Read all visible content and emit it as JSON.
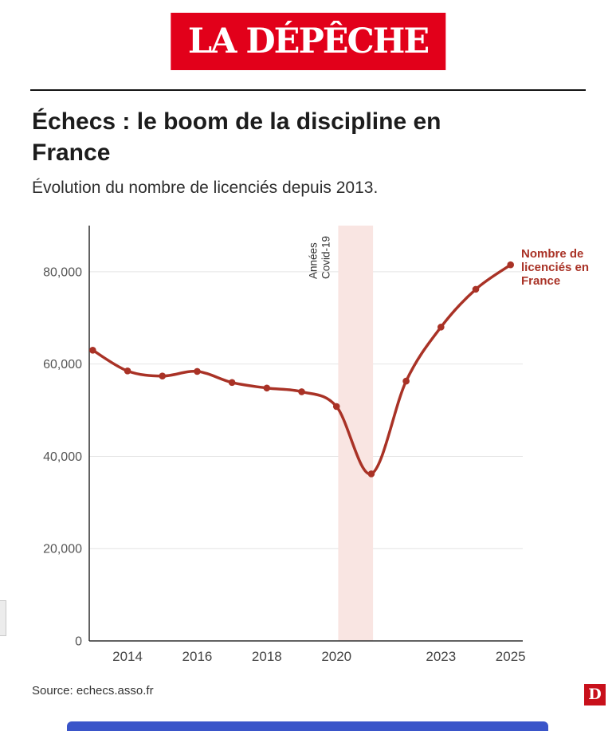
{
  "masthead": {
    "title": "LA DÉPÊCHE"
  },
  "header": {
    "title": "Échecs : le boom de la discipline en France",
    "subtitle": "Évolution du nombre de licenciés depuis 2013."
  },
  "chart_data": {
    "type": "line",
    "title": "Échecs : le boom de la discipline en France",
    "subtitle": "Évolution du nombre de licenciés depuis 2013.",
    "x": [
      2013,
      2014,
      2015,
      2016,
      2017,
      2018,
      2019,
      2020,
      2021,
      2022,
      2023,
      2024,
      2025
    ],
    "values": [
      63000,
      58500,
      57400,
      58400,
      56000,
      54800,
      54000,
      50800,
      36200,
      56300,
      68000,
      76200,
      81500
    ],
    "series_name": "Nombre de licenciés en France",
    "annotation_lines": [
      "Nombre de",
      "licenciés en",
      "France"
    ],
    "covid_band": {
      "start": 2020.05,
      "end": 2021.05,
      "color": "#f9e5e2",
      "label_lines": [
        "Années",
        "Covid-19"
      ]
    },
    "y_ticks": [
      0,
      20000,
      40000,
      60000,
      80000
    ],
    "y_tick_labels": [
      "0",
      "20,000",
      "40,000",
      "60,000",
      "80,000"
    ],
    "x_ticks": [
      2014,
      2016,
      2018,
      2020,
      2023,
      2025
    ],
    "x_tick_labels": [
      "2014",
      "2016",
      "2018",
      "2020",
      "2023",
      "2025"
    ],
    "xlim": [
      2012.9,
      2025.35
    ],
    "ylim": [
      0,
      90000
    ],
    "line_color": "#a93226",
    "grid": "horizontal",
    "legend_position": "annotation-right"
  },
  "colors": {
    "brand_red": "#e2001a",
    "line_red": "#a93226",
    "band_pink": "#f9e5e2",
    "footer_blue": "#3a55c9"
  },
  "footer": {
    "source": "Source: echecs.asso.fr",
    "logo_letter": "D"
  }
}
